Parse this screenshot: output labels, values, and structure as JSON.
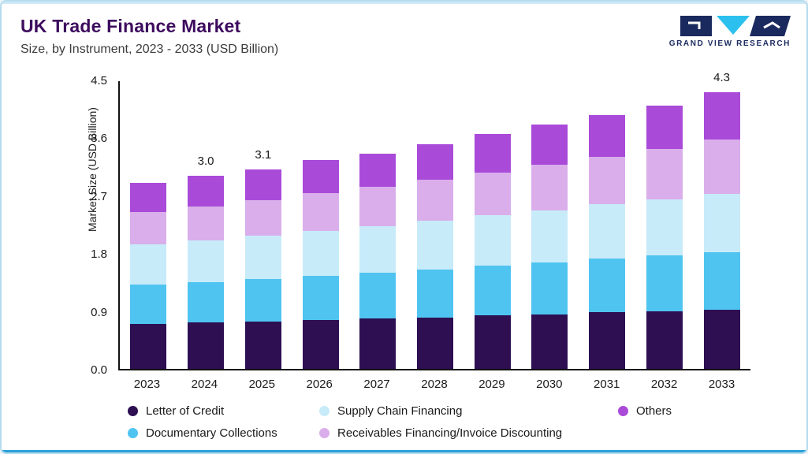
{
  "header": {
    "title": "UK Trade Finance Market",
    "subtitle": "Size, by Instrument, 2023 - 2033 (USD Billion)"
  },
  "logo": {
    "brand": "GRAND VIEW RESEARCH",
    "navy": "#1b2a5e",
    "cyan": "#2bc0ee"
  },
  "legend": {
    "rows": [
      [
        "Letter of Credit",
        "Supply Chain Financing",
        "Others"
      ],
      [
        "Documentary Collections",
        "Receivables Financing/Invoice Discounting"
      ]
    ]
  },
  "chart_data": {
    "type": "bar",
    "stacked": true,
    "title": "UK Trade Finance Market",
    "subtitle": "Size, by Instrument, 2023 - 2033 (USD Billion)",
    "ylabel": "Market Size (USD Billion)",
    "ylim": [
      0,
      4.5
    ],
    "yticks": [
      "0.0",
      "0.9",
      "1.8",
      "2.7",
      "3.6",
      "4.5"
    ],
    "grid": false,
    "legend_position": "bottom",
    "categories": [
      "2023",
      "2024",
      "2025",
      "2026",
      "2027",
      "2028",
      "2029",
      "2030",
      "2031",
      "2032",
      "2033"
    ],
    "series": [
      {
        "name": "Letter of Credit",
        "color": "#2d0f52",
        "values": [
          0.7,
          0.72,
          0.74,
          0.76,
          0.78,
          0.8,
          0.83,
          0.85,
          0.88,
          0.9,
          0.92
        ]
      },
      {
        "name": "Documentary Collections",
        "color": "#4fc4f0",
        "values": [
          0.61,
          0.63,
          0.66,
          0.69,
          0.72,
          0.75,
          0.78,
          0.81,
          0.84,
          0.87,
          0.9
        ]
      },
      {
        "name": "Supply Chain Financing",
        "color": "#c8ebfa",
        "values": [
          0.63,
          0.65,
          0.67,
          0.7,
          0.72,
          0.75,
          0.78,
          0.81,
          0.84,
          0.87,
          0.9
        ]
      },
      {
        "name": "Receivables Financing/Invoice Discounting",
        "color": "#d9aeea",
        "values": [
          0.5,
          0.53,
          0.55,
          0.58,
          0.61,
          0.64,
          0.67,
          0.7,
          0.74,
          0.78,
          0.85
        ]
      },
      {
        "name": "Others",
        "color": "#a94ad9",
        "values": [
          0.46,
          0.47,
          0.48,
          0.52,
          0.52,
          0.56,
          0.59,
          0.63,
          0.65,
          0.68,
          0.73
        ]
      }
    ],
    "bar_labels": {
      "2024": "3.0",
      "2025": "3.1",
      "2033": "4.3"
    },
    "totals": [
      2.9,
      3.0,
      3.1,
      3.25,
      3.35,
      3.5,
      3.65,
      3.8,
      3.95,
      4.1,
      4.3
    ]
  }
}
